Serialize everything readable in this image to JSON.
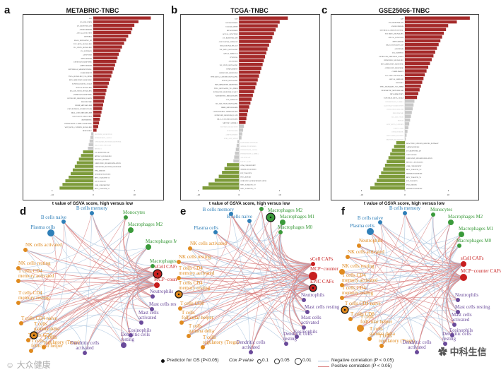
{
  "letters": {
    "a": "a",
    "b": "b",
    "c": "c",
    "d": "d",
    "e": "e",
    "f": "f"
  },
  "colors": {
    "up": "#a52a2a",
    "down": "#7d9b3a",
    "ns": "#c8c8c8",
    "neg_edge": "#aac4de",
    "pos_edge": "#d98080",
    "frame": "#444444"
  },
  "chart_data": [
    {
      "type": "bar",
      "panel": "a",
      "title": "METABRIC-TNBC",
      "xlabel": "t value of GSVA score, high versus low",
      "xticks": [
        "-10",
        "0",
        "10"
      ],
      "labels": [
        "E2F",
        "COAGULATION",
        "UV_RESPONSE_DN",
        "ANGIOGENESIS",
        "APICAL_JUNCTION",
        "HYPOXIA",
        "KRAS_SIGNALING_UP",
        "TGF_BETA_SIGNALING",
        "IL2_STAT5_SIGNALING",
        "P53_PATHWAY",
        "APOPTOSIS",
        "MYOGENESIS",
        "ESTROGEN_RESPONSE",
        "ADIPOGENESIS",
        "EPITHELIAL_MESENCHYMAL",
        "COMPLEMENT",
        "TNFA_SIGNALING_VIA_NFKB",
        "INFLAMMATORY_RESPONSE",
        "PANCREAS_BETA_CELLS",
        "NOTCH_SIGNALING",
        "IL6_JAK_STAT3_SIGNALING",
        "ANDROGEN_RESPONSE",
        "ESTROGEN_RESPONSE_EARLY",
        "PEROXISOME",
        "HEME_METABOLISM",
        "CHOLESTEROL_HOMEOSTASIS",
        "BILE_ACID_METABOLISM",
        "ALLOGRAFT_REJECTION",
        "XENOBIOTIC",
        "INTERFERON_GAMMA_RESPONSE",
        "WNT_BETA_CATENIN_SIGNALING",
        "HEDGEHOG",
        "PROTEIN_SECRETION",
        "INTERFERON_ALPHA",
        "UNFOLDED_PROTEIN_RESPONSE",
        "REACTIVE_OXYGEN",
        "MTORC1",
        "UV_RESPONSE_UP",
        "MTORC1_SIGNALING",
        "MITOTIC_SPINDLE",
        "OXIDATIVE_PHOSPHORYLATION",
        "UNFOLDED_PROTEIN_RESPONSE",
        "DNA_REPAIR",
        "SPERMATOGENESIS",
        "MYC_TARGETS_V2",
        "E2F_TARGETS",
        "G2M_CHECKPOINT",
        "MYC_TARGETS_V1"
      ],
      "values": [
        14,
        11,
        10,
        9.5,
        9.2,
        8.5,
        8,
        7.5,
        7,
        6.6,
        6.2,
        5.9,
        5.6,
        5.3,
        5,
        4.7,
        4.4,
        4.1,
        3.8,
        3.5,
        3.2,
        3,
        2.8,
        2.6,
        2.4,
        2.2,
        2,
        1.8,
        1.6,
        1.4,
        1.2,
        0.8,
        -0.5,
        -0.7,
        -0.9,
        -1.1,
        -1.3,
        -2.5,
        -3,
        -3.5,
        -4,
        -4.5,
        -5,
        -5.5,
        -6,
        -6.8,
        -7.5,
        -8.2
      ],
      "significance": [
        "up",
        "up",
        "up",
        "up",
        "up",
        "up",
        "up",
        "up",
        "up",
        "up",
        "up",
        "up",
        "up",
        "up",
        "up",
        "up",
        "up",
        "up",
        "up",
        "up",
        "up",
        "up",
        "up",
        "up",
        "up",
        "up",
        "up",
        "up",
        "up",
        "up",
        "up",
        "up",
        "ns",
        "ns",
        "ns",
        "ns",
        "ns",
        "down",
        "down",
        "down",
        "down",
        "down",
        "down",
        "down",
        "down",
        "down",
        "down",
        "down"
      ]
    },
    {
      "type": "bar",
      "panel": "b",
      "title": "TCGA-TNBC",
      "xlabel": "t value of GSVA score, high versus low",
      "xticks": [
        "-10",
        "0",
        "10"
      ],
      "labels": [
        "E2F",
        "ANGIOGENESIS",
        "COAGULATION",
        "MYOGENESIS",
        "APICAL_JUNCTION",
        "UV_RESPONSE_DN",
        "GLYCOLYSIS_PATHWAY",
        "KRAS_SIGNALING_UP",
        "TGF_BETA_SIGNALING",
        "APICAL_SURFACE",
        "HYPOXIA",
        "APOPTOSIS",
        "IL2_STAT5_SIGNALING",
        "COMPLEMENT",
        "ANDROGEN_RESPONSE",
        "WNT_BETA_CATENIN_SIGNALING",
        "NOTCH_SIGNALING",
        "INFLAMMATORY_RESPONSE",
        "TNFA_SIGNALING_VIA_NFKB",
        "ESTROGEN_RESPONSE_EARLY",
        "XENOBIOTIC_METABOLISM",
        "P53_PATHWAY",
        "IL6_JAK_STAT3_SIGNALING",
        "HEME_METABOLISM",
        "CHOLESTEROL_HOMEOSTASIS",
        "ESTROGEN_RESPONSE_LATE",
        "BILE_ACID_METABOLISM",
        "MITOTIC_SPINDLE",
        "PROTEIN_SECRETION",
        "PEROXISOME",
        "ADIPOGENESIS",
        "PI3K_AKT_MTOR",
        "UNFOLDED_PROTEIN",
        "SPERMATOGENESIS",
        "INTERFERON_ALPHA",
        "INTERFERON_GAMMA",
        "ALLOGRAFT",
        "FATTY_ACID",
        "G2M_CHECKPOINT",
        "SPERMATOGENESIS",
        "E2F_TARGETS",
        "DNA_REPAIR",
        "OXIDATIVE_PHOSPHORYLATION",
        "MYC_TARGETS_V2",
        "MYC_TARGETS_V1"
      ],
      "values": [
        12,
        10,
        9.5,
        9,
        8.6,
        8.2,
        7.8,
        7.4,
        7,
        6.7,
        6.4,
        6.1,
        5.8,
        5.5,
        5.2,
        4.9,
        4.6,
        4.3,
        4,
        3.7,
        3.4,
        3.1,
        2.8,
        2.5,
        2.2,
        2,
        1.8,
        1.6,
        1.2,
        1,
        0.8,
        0.6,
        -0.4,
        -0.6,
        -0.8,
        -1,
        -1.2,
        -1.4,
        -3,
        -3.6,
        -4.2,
        -5,
        -6,
        -7.5,
        -9
      ],
      "significance": [
        "up",
        "up",
        "up",
        "up",
        "up",
        "up",
        "up",
        "up",
        "up",
        "up",
        "up",
        "up",
        "up",
        "up",
        "up",
        "up",
        "up",
        "up",
        "up",
        "up",
        "up",
        "up",
        "up",
        "up",
        "up",
        "up",
        "up",
        "up",
        "ns",
        "ns",
        "ns",
        "ns",
        "ns",
        "ns",
        "ns",
        "ns",
        "ns",
        "ns",
        "down",
        "down",
        "down",
        "down",
        "down",
        "down",
        "down"
      ]
    },
    {
      "type": "bar",
      "panel": "c",
      "title": "GSE25066-TNBC",
      "xlabel": "t value of GSVA score, high versus low",
      "xticks": [
        "-10",
        "0",
        "10"
      ],
      "labels": [
        "E2F",
        "UV_RESPONSE_DN",
        "ANGIOGENESIS",
        "EPITHELIAL_MESENCHYMAL",
        "TGF_BETA_SIGNALING",
        "APICAL_JUNCTION",
        "MYOGENESIS",
        "KRAS_SIGNALING_UP",
        "APOPTOSIS",
        "P53_PATHWAY",
        "ESTROGEN_RESPONSE_EARLY",
        "HEDGEHOG_SIGNALING",
        "INFLAMMATORY_RESPONSE",
        "ANDROGEN_RESPONSE",
        "COMPLEMENT",
        "IL2_STAT5_SIGNALING",
        "APICAL_SURFACE",
        "HYPOXIA",
        "TNFA_SIGNALING_VIA_NFKB",
        "XENOBIOTIC_METABOLISM",
        "INFLAMMATORY",
        "PANCREAS_BETA_CELLS",
        "INTERFERON_GAMMA",
        "ALLOGRAFT_REJECTION",
        "HEME_METABOLISM",
        "PEROXISOME",
        "IL6_JAK_STAT3",
        "NOTCH",
        "WNT_BETA_CATENIN",
        "FATTY_ACID",
        "CHOLESTEROL",
        "UNFOLDED_PROTEIN",
        "PROTEIN_SECRETION",
        "REACTIVE_OXYGEN_SPECIES_PATHWAY",
        "ANDROGENESIS",
        "UV_RESPONSE_UP",
        "GLYCOLYSIS",
        "OXIDATIVE_PHOSPHORYLATION",
        "MTORC1_SIGNALING",
        "G2M_CHECKPOINT",
        "MYC_TARGETS_V2",
        "SPERMATOGENESIS",
        "MYC_TARGETS_V1",
        "E2F_TARGETS",
        "DNA_REPAIR",
        "SPERMATOGENESIS"
      ],
      "values": [
        15,
        12,
        10,
        9.5,
        9,
        8.6,
        8.2,
        7.8,
        7.4,
        7,
        6.6,
        6.2,
        5.8,
        5.4,
        5,
        4.6,
        4.3,
        4,
        3.7,
        3.4,
        3.1,
        2.8,
        2.2,
        2,
        1.8,
        1.6,
        1.4,
        1.2,
        1,
        0.8,
        0.6,
        0.4,
        0.2,
        -2,
        -2.5,
        -3,
        -3.4,
        -3.8,
        -4.2,
        -4.6,
        -5,
        -5.5,
        -6,
        -6.5,
        -7,
        -8
      ],
      "significance": [
        "up",
        "up",
        "up",
        "up",
        "up",
        "up",
        "up",
        "up",
        "up",
        "up",
        "up",
        "up",
        "up",
        "up",
        "up",
        "up",
        "up",
        "up",
        "up",
        "up",
        "up",
        "up",
        "ns",
        "ns",
        "ns",
        "ns",
        "ns",
        "ns",
        "ns",
        "ns",
        "ns",
        "ns",
        "ns",
        "down",
        "down",
        "down",
        "down",
        "down",
        "down",
        "down",
        "down",
        "down",
        "down",
        "down",
        "down",
        "down"
      ]
    }
  ],
  "networks": [
    {
      "panel": "d",
      "nodes": [
        {
          "id": "bcn",
          "label": "B cells naive",
          "group": "blue",
          "size": 3
        },
        {
          "id": "bcm",
          "label": "B cells memory",
          "group": "blue",
          "size": 3
        },
        {
          "id": "pc",
          "label": "Plasma cells",
          "group": "blue",
          "size": 5
        },
        {
          "id": "mono",
          "label": "Monocytes",
          "group": "green",
          "size": 3
        },
        {
          "id": "m2",
          "label": "Macrophages M2",
          "group": "green",
          "size": 4
        },
        {
          "id": "m1",
          "label": "Macrophages M1",
          "group": "green",
          "size": 4
        },
        {
          "id": "m0",
          "label": "Macrophages M0",
          "group": "green",
          "size": 3
        },
        {
          "id": "nka",
          "label": "NK cells activated",
          "group": "orange",
          "size": 3
        },
        {
          "id": "nkr",
          "label": "NK cells resting",
          "group": "orange",
          "size": 3
        },
        {
          "id": "tcd4m",
          "label": "T cells CD4 memory activated",
          "group": "orange",
          "size": 3
        },
        {
          "id": "tcd4r",
          "label": "T cells CD4 memory resting",
          "group": "orange",
          "size": 3
        },
        {
          "id": "tcd4n",
          "label": "T cells CD4 naive",
          "group": "orange",
          "size": 3
        },
        {
          "id": "tcd8",
          "label": "T cells CD8",
          "group": "orange",
          "size": 3
        },
        {
          "id": "tfh",
          "label": "T cells follicular helper",
          "group": "orange",
          "size": 3
        },
        {
          "id": "tgd",
          "label": "T cells gamma delta",
          "group": "orange",
          "size": 5,
          "predictor": true
        },
        {
          "id": "treg",
          "label": "T cells regulatory (Tregs)",
          "group": "orange",
          "size": 3
        },
        {
          "id": "dca",
          "label": "Dendritic cells activated",
          "group": "purple",
          "size": 3
        },
        {
          "id": "dcr",
          "label": "Dendritic cells resting",
          "group": "purple",
          "size": 4
        },
        {
          "id": "eos",
          "label": "Eosinophils",
          "group": "purple",
          "size": 3
        },
        {
          "id": "mca",
          "label": "Mast cells activated",
          "group": "purple",
          "size": 3
        },
        {
          "id": "mcr",
          "label": "Mast cells resting",
          "group": "purple",
          "size": 3
        },
        {
          "id": "neu",
          "label": "Neutrophils",
          "group": "purple",
          "size": 3
        },
        {
          "id": "scaf",
          "label": "sCell CAFs",
          "group": "red",
          "size": 6,
          "predictor": true
        },
        {
          "id": "mcp",
          "label": "MCP−counter CAFs",
          "group": "red",
          "size": 4
        }
      ]
    },
    {
      "panel": "e",
      "nodes": [
        {
          "id": "bcm",
          "label": "B cells memory",
          "group": "blue",
          "size": 3
        },
        {
          "id": "bcn",
          "label": "B cells naive",
          "group": "blue",
          "size": 3
        },
        {
          "id": "mono",
          "label": "Monocytes",
          "group": "green",
          "size": 3
        },
        {
          "id": "m2",
          "label": "Macrophages M2",
          "group": "green",
          "size": 6,
          "predictor": true
        },
        {
          "id": "m1",
          "label": "Macrophages M1",
          "group": "green",
          "size": 4
        },
        {
          "id": "m0",
          "label": "Macrophages M0",
          "group": "green",
          "size": 3
        },
        {
          "id": "pc",
          "label": "Plasma cells",
          "group": "blue",
          "size": 3
        },
        {
          "id": "nka",
          "label": "NK cells activated",
          "group": "orange",
          "size": 3
        },
        {
          "id": "nkr",
          "label": "NK cells resting",
          "group": "orange",
          "size": 3
        },
        {
          "id": "tcd4m",
          "label": "T cells CD4 memory activated",
          "group": "orange",
          "size": 3
        },
        {
          "id": "tcd4r",
          "label": "T cells CD4 memory resting",
          "group": "orange",
          "size": 5,
          "predictor": true
        },
        {
          "id": "tcd8",
          "label": "T cells CD8",
          "group": "orange",
          "size": 3
        },
        {
          "id": "tfh",
          "label": "T cells follicular helper",
          "group": "orange",
          "size": 3
        },
        {
          "id": "tgd",
          "label": "T cells gamma delta",
          "group": "orange",
          "size": 3
        },
        {
          "id": "treg",
          "label": "T cells regulatory (Tregs)",
          "group": "orange",
          "size": 3
        },
        {
          "id": "dca",
          "label": "Dendritic cells activated",
          "group": "purple",
          "size": 3
        },
        {
          "id": "dcr",
          "label": "Dendritic cells resting",
          "group": "purple",
          "size": 3
        },
        {
          "id": "eos",
          "label": "Eosinophils",
          "group": "purple",
          "size": 3
        },
        {
          "id": "mca",
          "label": "Mast cells activated",
          "group": "purple",
          "size": 3
        },
        {
          "id": "mcr",
          "label": "Mast cells resting",
          "group": "purple",
          "size": 3
        },
        {
          "id": "neu",
          "label": "Neutrophils",
          "group": "purple",
          "size": 3
        },
        {
          "id": "scaf",
          "label": "sCell CAFs",
          "group": "red",
          "size": 3
        },
        {
          "id": "mcp",
          "label": "MCP−counter CAFs",
          "group": "red",
          "size": 6
        },
        {
          "id": "epic",
          "label": "EPIC CAFs",
          "group": "red",
          "size": 5,
          "predictor": true
        }
      ]
    },
    {
      "panel": "f",
      "nodes": [
        {
          "id": "bcn",
          "label": "B cells naive",
          "group": "blue",
          "size": 3
        },
        {
          "id": "bcm",
          "label": "B cells memory",
          "group": "blue",
          "size": 3
        },
        {
          "id": "pc",
          "label": "Plasma cells",
          "group": "blue",
          "size": 5
        },
        {
          "id": "mono",
          "label": "Monocytes",
          "group": "green",
          "size": 3
        },
        {
          "id": "m2",
          "label": "Macrophages M2",
          "group": "green",
          "size": 4
        },
        {
          "id": "m1",
          "label": "Macrophages M1",
          "group": "green",
          "size": 4
        },
        {
          "id": "m0",
          "label": "Macrophages M0",
          "group": "green",
          "size": 3
        },
        {
          "id": "neu2",
          "label": "Neutrophils",
          "group": "orange",
          "size": 3
        },
        {
          "id": "nka",
          "label": "NK cells activated",
          "group": "orange",
          "size": 3
        },
        {
          "id": "nkr",
          "label": "NK cells resting",
          "group": "orange",
          "size": 4
        },
        {
          "id": "tcd4m",
          "label": "T cells CD4 memory activated",
          "group": "orange",
          "size": 3
        },
        {
          "id": "tcd4r",
          "label": "T cells CD4 memory resting",
          "group": "orange",
          "size": 3
        },
        {
          "id": "tcd4n",
          "label": "T cells CD4 naive",
          "group": "orange",
          "size": 5,
          "predictor": true
        },
        {
          "id": "tcd8",
          "label": "T cells CD8",
          "group": "orange",
          "size": 3
        },
        {
          "id": "tfh",
          "label": "T cells follicular helper",
          "group": "orange",
          "size": 5
        },
        {
          "id": "tgd",
          "label": "T cells gamma delta",
          "group": "orange",
          "size": 3
        },
        {
          "id": "treg",
          "label": "T cells regulatory (Tregs)",
          "group": "orange",
          "size": 3
        },
        {
          "id": "dca",
          "label": "Dendritic cells activated",
          "group": "purple",
          "size": 3
        },
        {
          "id": "dcr",
          "label": "Dendritic cells resting",
          "group": "purple",
          "size": 3
        },
        {
          "id": "eos",
          "label": "Eosinophils",
          "group": "purple",
          "size": 3
        },
        {
          "id": "mca",
          "label": "Mast cells activated",
          "group": "purple",
          "size": 3
        },
        {
          "id": "mcr",
          "label": "Mast cells resting",
          "group": "purple",
          "size": 3
        },
        {
          "id": "neu",
          "label": "Neutrophils",
          "group": "purple",
          "size": 3
        },
        {
          "id": "scaf",
          "label": "sCell CAFs",
          "group": "red",
          "size": 4
        },
        {
          "id": "mcp",
          "label": "MCP−counter CAFs",
          "group": "red",
          "size": 5
        }
      ]
    }
  ],
  "legend": {
    "predictor": "Predictor for OS (P<0.05)",
    "cox_label": "Cox P value",
    "cox_values": [
      "0.1",
      "0.05",
      "0.01"
    ],
    "negative": "Negative correlation (P < 0.05)",
    "positive": "Positive correlation (P < 0.05)"
  },
  "watermark_left": "大众健康",
  "watermark_right": "中科生信"
}
